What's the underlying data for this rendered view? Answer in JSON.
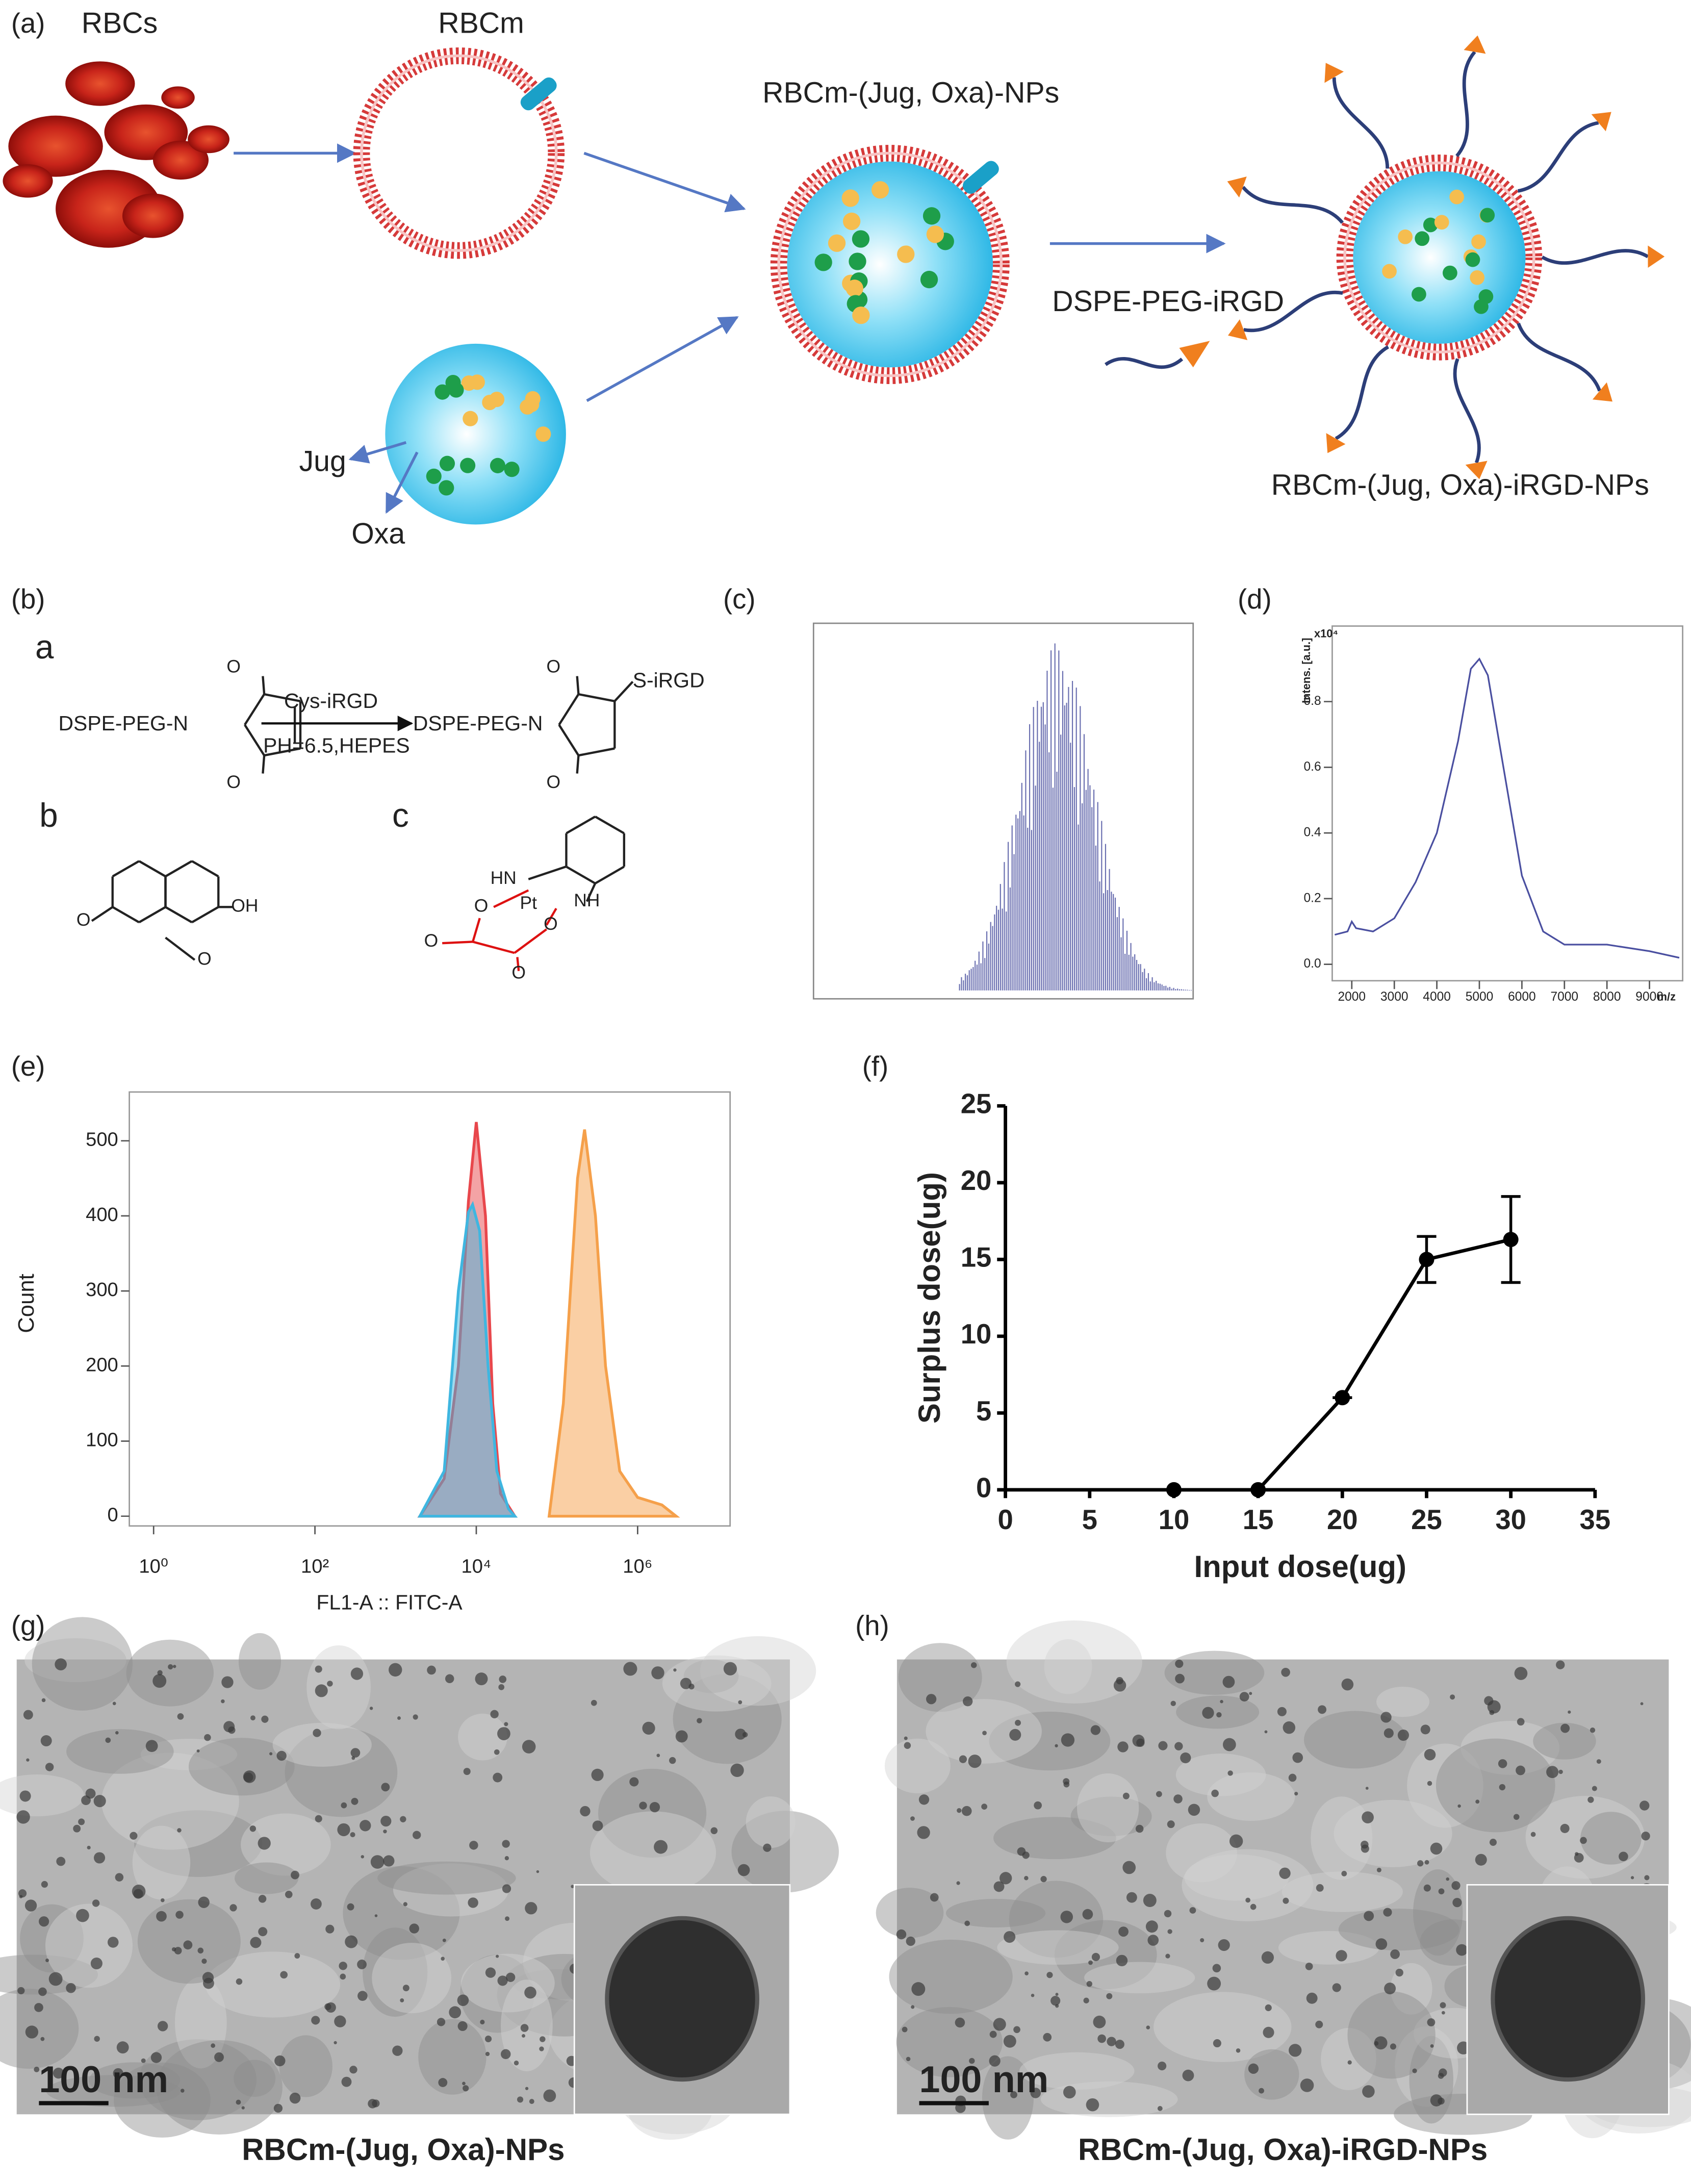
{
  "panel_labels": [
    "(a)",
    "(b)",
    "(c)",
    "(d)",
    "(e)",
    "(f)",
    "(g)",
    "(h)"
  ],
  "schematic": {
    "rbcs": "RBCs",
    "rbcm": "RBCm",
    "nps": "RBCm-(Jug, Oxa)-NPs",
    "linker": "DSPE-PEG-iRGD",
    "irgd_nps": "RBCm-(Jug, Oxa)-iRGD-NPs",
    "jug": "Jug",
    "oxa": "Oxa"
  },
  "structures": {
    "labels": [
      "a",
      "b",
      "c"
    ],
    "reactant": "DSPE-PEG-N",
    "reagent": "Cys-iRGD",
    "conditions": "PH=6.5,HEPES",
    "product": "DSPE-PEG-N",
    "substituent": "S-iRGD",
    "atoms": [
      "O",
      "O",
      "O",
      "O",
      "O",
      "O",
      "OH",
      "HN",
      "NH",
      "Pt",
      "O",
      "O",
      "O",
      "O"
    ]
  },
  "chart_data": [
    {
      "type": "line",
      "color": "#4a4fa0",
      "ylabel": "Intens. [a.u.]",
      "y_multiplier": "x10⁴",
      "xlabel": "m/z",
      "x": [
        1600,
        1900,
        2000,
        2100,
        2500,
        3000,
        3500,
        4000,
        4500,
        4800,
        5000,
        5200,
        5500,
        6000,
        6500,
        7000,
        8000,
        9000,
        9700
      ],
      "values": [
        0.09,
        0.1,
        0.13,
        0.11,
        0.1,
        0.14,
        0.25,
        0.4,
        0.68,
        0.9,
        0.93,
        0.88,
        0.65,
        0.27,
        0.1,
        0.06,
        0.06,
        0.04,
        0.02
      ],
      "xlim": [
        1540,
        9780
      ],
      "ylim": [
        -0.05,
        1.03
      ],
      "xticks": [
        2000,
        3000,
        4000,
        5000,
        6000,
        7000,
        8000,
        9000
      ],
      "yticks": [
        {
          "value": 0,
          "label": "0.0"
        },
        0.2,
        0.4,
        0.6,
        0.8
      ]
    },
    {
      "type": "area",
      "log_x": true,
      "xlabel": "FL1-A :: FITC-A",
      "ylabel": "Count",
      "series": [
        {
          "color": "#e8474c",
          "x": [
            2000,
            4000,
            6000,
            8000,
            10000,
            13000,
            16000,
            20000,
            30000
          ],
          "values": [
            0,
            50,
            200,
            420,
            525,
            400,
            150,
            30,
            0
          ]
        },
        {
          "color": "#3fb6e0",
          "x": [
            2000,
            4000,
            6000,
            8000,
            9000,
            11000,
            14000,
            18000,
            25000,
            30000
          ],
          "values": [
            0,
            60,
            300,
            405,
            415,
            380,
            200,
            60,
            10,
            0
          ]
        },
        {
          "color": "#f5a04a",
          "x": [
            80000,
            120000,
            180000,
            220000,
            300000,
            400000,
            600000,
            1000000,
            2000000,
            3000000
          ],
          "values": [
            0,
            150,
            450,
            515,
            400,
            200,
            60,
            25,
            15,
            0
          ]
        }
      ],
      "xlim": [
        0.5,
        14000000
      ],
      "ylim": [
        -13,
        565
      ],
      "xticks": [
        {
          "value": 1,
          "label": "10⁰"
        },
        {
          "value": 100,
          "label": "10²"
        },
        {
          "value": 10000,
          "label": "10⁴"
        },
        {
          "value": 1000000,
          "label": "10⁶"
        }
      ],
      "yticks": [
        0,
        100,
        200,
        300,
        400,
        500
      ]
    },
    {
      "type": "line",
      "color": "#000000",
      "xlabel": "Input dose(ug)",
      "ylabel": "Surplus dose(ug)",
      "x": [
        10,
        15,
        20,
        25,
        30
      ],
      "values": [
        0,
        0,
        6,
        15,
        16.3
      ],
      "errors": [
        0,
        0,
        0,
        1.5,
        2.8
      ],
      "xlim": [
        0,
        35
      ],
      "ylim": [
        0,
        25
      ],
      "xticks": [
        0,
        5,
        10,
        15,
        20,
        25,
        30,
        35
      ],
      "yticks": [
        0,
        5,
        10,
        15,
        20,
        25
      ]
    }
  ],
  "micrographs": [
    {
      "scale_bar": "100 nm",
      "caption": "RBCm-(Jug, Oxa)-NPs"
    },
    {
      "scale_bar": "100 nm",
      "caption": "RBCm-(Jug, Oxa)-iRGD-NPs"
    }
  ]
}
